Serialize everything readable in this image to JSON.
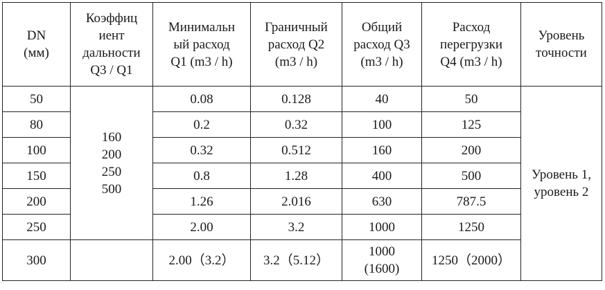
{
  "headers": [
    [
      "DN",
      "(мм)"
    ],
    [
      "Коэффиц",
      "иент",
      "дальности",
      "Q3 / Q1"
    ],
    [
      "Минимальн",
      "ый расход",
      "Q1 (m3 / h)"
    ],
    [
      "Граничный",
      "расход Q2",
      "(m3 / h)"
    ],
    [
      "Общий",
      "расход Q3",
      "(m3 / h)"
    ],
    [
      "Расход",
      "перегрузки",
      "Q4 (m3 / h)"
    ],
    [
      "Уровень",
      "точности"
    ]
  ],
  "range_ratio": [
    "160",
    "200",
    "250",
    "500"
  ],
  "accuracy": [
    "Уровень 1,",
    "уровень 2"
  ],
  "rows": [
    {
      "dn": "50",
      "q1": "0.08",
      "q2": "0.128",
      "q3": "40",
      "q4": "50"
    },
    {
      "dn": "80",
      "q1": "0.2",
      "q2": "0.32",
      "q3": "100",
      "q4": "125"
    },
    {
      "dn": "100",
      "q1": "0.32",
      "q2": "0.512",
      "q3": "160",
      "q4": "200"
    },
    {
      "dn": "150",
      "q1": "0.8",
      "q2": "1.28",
      "q3": "400",
      "q4": "500"
    },
    {
      "dn": "200",
      "q1": "1.26",
      "q2": "2.016",
      "q3": "630",
      "q4": "787.5"
    },
    {
      "dn": "250",
      "q1": "2.00",
      "q2": "3.2",
      "q3": "1000",
      "q4": "1250"
    }
  ],
  "last_row": {
    "dn": "300",
    "q1": "2.00（3.2）",
    "q2": "3.2（5.12）",
    "q3": [
      "1000",
      "(1600)"
    ],
    "q4": "1250（2000）"
  }
}
